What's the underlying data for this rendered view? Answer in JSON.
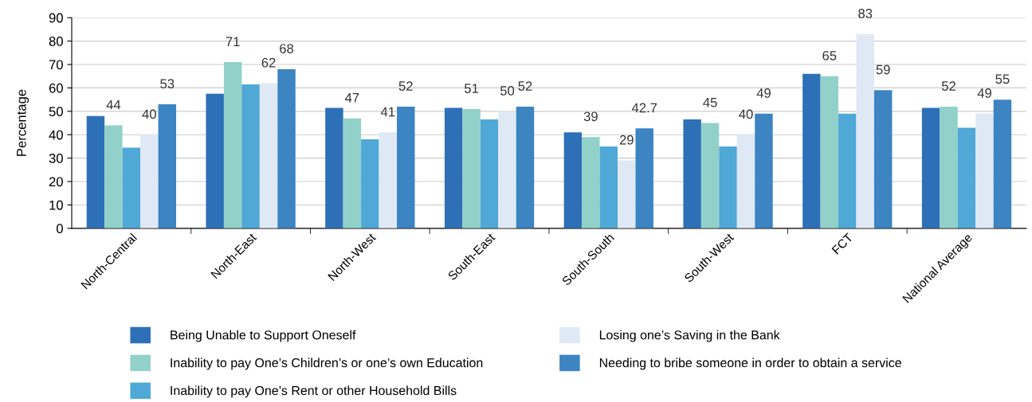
{
  "chart_data": {
    "type": "bar",
    "ylabel": "Percentage",
    "categories": [
      "North-Central",
      "North-East",
      "North-West",
      "South-East",
      "South-South",
      "South-West",
      "FCT",
      "National Average"
    ],
    "series": [
      {
        "name": "Being Unable to Support Oneself",
        "color": "#2e70b7",
        "values": [
          48,
          57.5,
          51.5,
          51.5,
          41,
          46.5,
          66,
          51.5
        ]
      },
      {
        "name": "Inability to pay One’s Children’s or one’s own Education",
        "color": "#92d1c9",
        "values": [
          44,
          71,
          47,
          51,
          39,
          45,
          65,
          52
        ],
        "value_labels": [
          "44",
          "71",
          "47",
          "51",
          "39",
          "45",
          "65",
          "52"
        ]
      },
      {
        "name": "Inability to pay One’s Rent or other Household Bills",
        "color": "#4fa8d6",
        "values": [
          34.5,
          61.5,
          38,
          46.5,
          35,
          35,
          49,
          43
        ]
      },
      {
        "name": "Losing one’s Saving in the Bank",
        "color": "#dfe9f6",
        "values": [
          40,
          62,
          41,
          50,
          29,
          40,
          83,
          49
        ],
        "value_labels": [
          "40",
          "62",
          "41",
          "50",
          "29",
          "40",
          "83",
          "49"
        ]
      },
      {
        "name": "Needing to bribe someone in order to obtain a service",
        "color": "#3c84c2",
        "values": [
          53,
          68,
          52,
          52,
          42.7,
          49,
          59,
          55
        ],
        "value_labels": [
          "53",
          "68",
          "52",
          "52",
          "42.7",
          "49",
          "59",
          "55"
        ]
      }
    ],
    "ylim": [
      0,
      90
    ],
    "yticks": [
      0,
      10,
      20,
      30,
      40,
      50,
      60,
      70,
      80,
      90
    ],
    "grid": "y",
    "legend": "bottom"
  }
}
